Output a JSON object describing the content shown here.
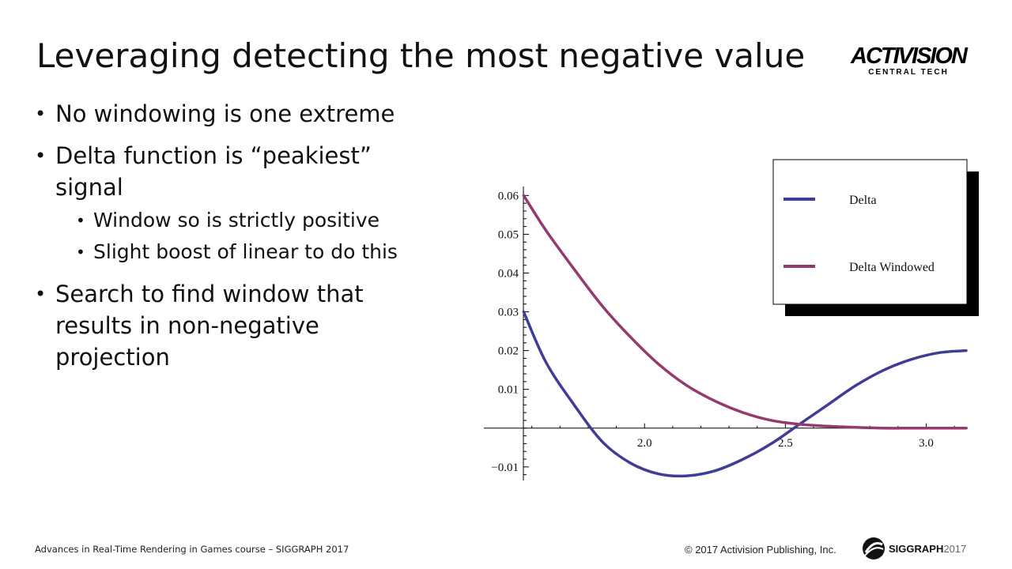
{
  "slide": {
    "title": "Leveraging detecting the most negative value",
    "logo": {
      "main": "Activision",
      "sub": "CENTRAL TECH"
    },
    "bullets": [
      {
        "text": "No windowing is one extreme",
        "sub": []
      },
      {
        "text": "Delta function is “peakiest”\nsignal",
        "sub": [
          "Window so is strictly positive",
          "Slight boost of linear to do this"
        ]
      },
      {
        "text": "Search to find window that\nresults in non-negative\nprojection",
        "sub": []
      }
    ],
    "footer_left": "Advances in Real-Time Rendering in Games course – SIGGRAPH 2017",
    "copyright": "© 2017 Activision Publishing, Inc.",
    "siggraph": {
      "name": "SIGGRAPH",
      "year": "2017"
    }
  },
  "chart_data": {
    "type": "line",
    "title": "",
    "xlabel": "",
    "ylabel": "",
    "xlim": [
      1.57,
      3.1416
    ],
    "ylim": [
      -0.0135,
      0.0615
    ],
    "x_axis_crossing": 1.57,
    "x_ticks": [
      2.0,
      2.5,
      3.0
    ],
    "x_tick_labels": [
      "2.0",
      "2.5",
      "3.0"
    ],
    "y_ticks": [
      -0.01,
      0.01,
      0.02,
      0.03,
      0.04,
      0.05,
      0.06
    ],
    "y_tick_labels": [
      "−0.01",
      "0.01",
      "0.02",
      "0.03",
      "0.04",
      "0.05",
      "0.06"
    ],
    "legend_position": "top-right",
    "series": [
      {
        "name": "Delta",
        "color": "#3f3d96",
        "x": [
          1.571,
          1.65,
          1.75,
          1.85,
          1.95,
          2.05,
          2.15,
          2.25,
          2.35,
          2.45,
          2.55,
          2.65,
          2.75,
          2.85,
          2.95,
          3.05,
          3.1416
        ],
        "y": [
          0.03,
          0.017,
          0.006,
          -0.0035,
          -0.009,
          -0.0118,
          -0.0123,
          -0.011,
          -0.008,
          -0.004,
          0.001,
          0.006,
          0.011,
          0.015,
          0.0178,
          0.0195,
          0.02
        ]
      },
      {
        "name": "Delta Windowed",
        "color": "#953a6e",
        "x": [
          1.571,
          1.65,
          1.75,
          1.85,
          1.95,
          2.05,
          2.15,
          2.25,
          2.35,
          2.45,
          2.55,
          2.65,
          2.75,
          2.85,
          2.95,
          3.05,
          3.1416
        ],
        "y": [
          0.06,
          0.051,
          0.041,
          0.0315,
          0.0235,
          0.0165,
          0.011,
          0.007,
          0.004,
          0.002,
          0.001,
          0.0005,
          0.0002,
          0.0,
          0.0,
          0.0,
          0.0
        ]
      }
    ]
  }
}
